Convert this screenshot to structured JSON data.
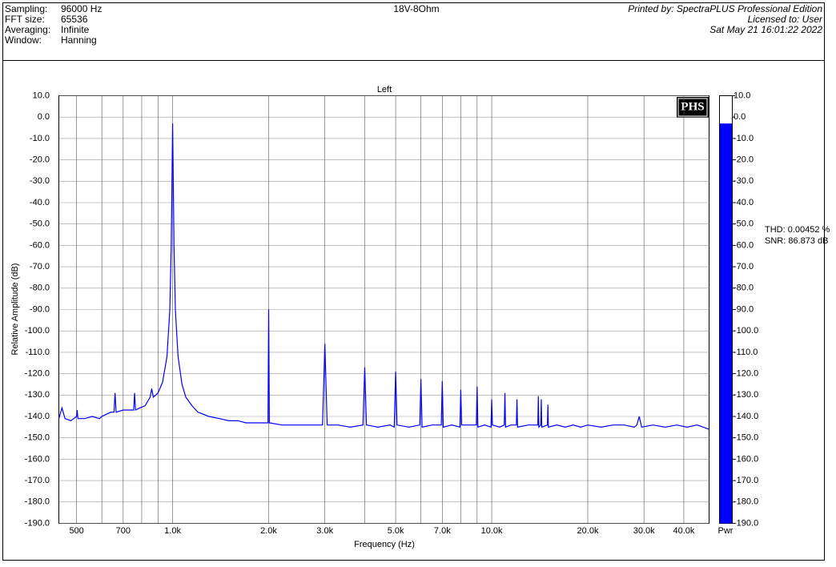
{
  "header": {
    "fields": [
      {
        "label": "Sampling:",
        "value": "96000 Hz"
      },
      {
        "label": "FFT size:",
        "value": "65536"
      },
      {
        "label": "Averaging:",
        "value": "Infinite"
      },
      {
        "label": "Window:",
        "value": "Hanning"
      }
    ],
    "center": "18V-8Ohm",
    "right": [
      "Printed by: SpectraPLUS Professional Edition",
      "Licensed to: User",
      "Sat May 21 16:01:22 2022"
    ]
  },
  "chart_data": {
    "type": "line",
    "title": "Left",
    "x_label": "Frequency (Hz)",
    "y_label": "Relative Amplitude (dB)",
    "log_x": true,
    "grid": true,
    "color": "#0000ff",
    "logo": "PHS",
    "annotations": [
      "THD: 0.00452 %",
      "SNR: 86.873 dB"
    ],
    "xlim": [
      440,
      48000
    ],
    "xticks": [
      {
        "value": 500,
        "label": "500"
      },
      {
        "value": 700,
        "label": "700"
      },
      {
        "value": 1000,
        "label": "1.0k"
      },
      {
        "value": 2000,
        "label": "2.0k"
      },
      {
        "value": 3000,
        "label": "3.0k"
      },
      {
        "value": 5000,
        "label": "5.0k"
      },
      {
        "value": 7000,
        "label": "7.0k"
      },
      {
        "value": 10000,
        "label": "10.0k"
      },
      {
        "value": 20000,
        "label": "20.0k"
      },
      {
        "value": 30000,
        "label": "30.0k"
      },
      {
        "value": 40000,
        "label": "40.0k"
      }
    ],
    "xgrid_minor": [
      600,
      800,
      900,
      4000,
      6000,
      8000,
      9000
    ],
    "ylim": [
      -190,
      10
    ],
    "yticks": [
      {
        "value": 10,
        "label": "10.0"
      },
      {
        "value": 0,
        "label": "0.0"
      },
      {
        "value": -10,
        "label": "-10.0"
      },
      {
        "value": -20,
        "label": "-20.0"
      },
      {
        "value": -30,
        "label": "-30.0"
      },
      {
        "value": -40,
        "label": "-40.0"
      },
      {
        "value": -50,
        "label": "-50.0"
      },
      {
        "value": -60,
        "label": "-60.0"
      },
      {
        "value": -70,
        "label": "-70.0"
      },
      {
        "value": -80,
        "label": "-80.0"
      },
      {
        "value": -90,
        "label": "-90.0"
      },
      {
        "value": -100,
        "label": "-100.0"
      },
      {
        "value": -110,
        "label": "-110.0"
      },
      {
        "value": -120,
        "label": "-120.0"
      },
      {
        "value": -130,
        "label": "-130.0"
      },
      {
        "value": -140,
        "label": "-140.0"
      },
      {
        "value": -150,
        "label": "-150.0"
      },
      {
        "value": -160,
        "label": "-160.0"
      },
      {
        "value": -170,
        "label": "-170.0"
      },
      {
        "value": -180,
        "label": "-180.0"
      },
      {
        "value": -190,
        "label": "-190.0"
      }
    ],
    "meter": {
      "label": "Pwr",
      "value": -3,
      "color": "#0000ff"
    },
    "x": [
      440,
      450,
      460,
      480,
      500,
      502,
      505,
      530,
      560,
      590,
      600,
      620,
      640,
      655,
      660,
      665,
      700,
      730,
      755,
      760,
      765,
      790,
      820,
      850,
      860,
      870,
      900,
      930,
      960,
      980,
      990,
      997,
      1000,
      1003,
      1010,
      1020,
      1040,
      1070,
      1100,
      1150,
      1200,
      1300,
      1400,
      1500,
      1600,
      1700,
      1800,
      1900,
      1990,
      2000,
      2010,
      2200,
      2400,
      2600,
      2800,
      2950,
      3000,
      3050,
      3300,
      3600,
      3950,
      4000,
      4050,
      4400,
      4800,
      4950,
      5000,
      5050,
      5500,
      5950,
      6000,
      6050,
      6500,
      6950,
      7000,
      7050,
      7500,
      7950,
      8000,
      8050,
      8500,
      8950,
      9000,
      9050,
      9500,
      9950,
      10000,
      10050,
      10600,
      10950,
      11000,
      11050,
      11500,
      11950,
      12000,
      12050,
      13000,
      13950,
      14000,
      14050,
      14250,
      14300,
      14350,
      14950,
      15000,
      15050,
      16000,
      17000,
      18000,
      19000,
      20000,
      22000,
      24000,
      26000,
      28000,
      28500,
      29000,
      29500,
      32000,
      35000,
      38000,
      41000,
      44000,
      46000,
      48000
    ],
    "values": [
      -141,
      -136,
      -141,
      -142,
      -140,
      -137,
      -141,
      -141,
      -140,
      -141,
      -140,
      -139,
      -138,
      -138,
      -129,
      -138,
      -137,
      -137,
      -137,
      -129,
      -137,
      -136,
      -135,
      -131,
      -127,
      -131,
      -129,
      -124,
      -112,
      -90,
      -60,
      -20,
      -3,
      -20,
      -60,
      -90,
      -112,
      -125,
      -131,
      -135,
      -138,
      -140,
      -141,
      -142,
      -142,
      -143,
      -143,
      -143,
      -143,
      -90,
      -143,
      -144,
      -144,
      -144,
      -144,
      -144,
      -106,
      -144,
      -144,
      -145,
      -144,
      -117,
      -144,
      -145,
      -144,
      -145,
      -119,
      -144,
      -145,
      -144,
      -122.5,
      -145,
      -144,
      -144,
      -123.5,
      -145,
      -144,
      -145,
      -127.5,
      -144,
      -144,
      -144,
      -126,
      -145,
      -144,
      -145,
      -132,
      -144,
      -145,
      -144,
      -129,
      -145,
      -144,
      -144,
      -132,
      -145,
      -144,
      -144,
      -130.5,
      -145,
      -144,
      -132,
      -145,
      -144,
      -134.5,
      -145,
      -144,
      -145,
      -144,
      -145,
      -144,
      -145,
      -144,
      -144,
      -145,
      -144,
      -140,
      -145,
      -144,
      -145,
      -144,
      -145,
      -144,
      -145,
      -146
    ]
  }
}
